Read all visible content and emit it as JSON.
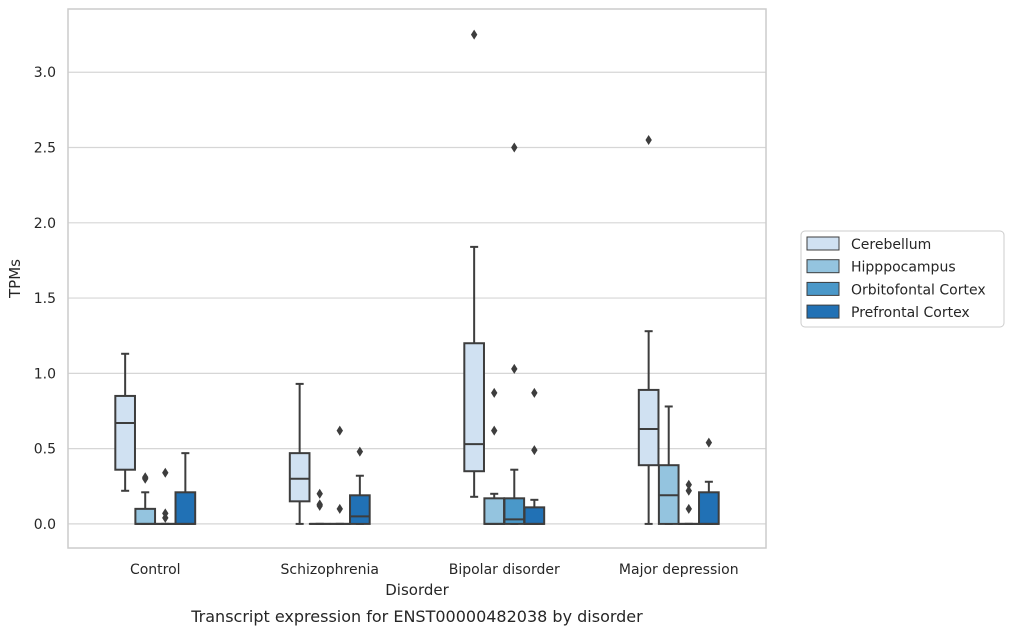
{
  "caption": "Transcript expression for ENST00000482038 by disorder",
  "chart_data": {
    "type": "box",
    "title": "",
    "xlabel": "Disorder",
    "ylabel": "TPMs",
    "ylim": [
      -0.16,
      3.42
    ],
    "yticks": [
      0.0,
      0.5,
      1.0,
      1.5,
      2.0,
      2.5,
      3.0
    ],
    "ytick_labels": [
      "0.0",
      "0.5",
      "1.0",
      "1.5",
      "2.0",
      "2.5",
      "3.0"
    ],
    "grid": "horizontal",
    "legend_position": "center-right outside",
    "categories": [
      "Control",
      "Schizophrenia",
      "Bipolar disorder",
      "Major depression"
    ],
    "series": [
      {
        "name": "Cerebellum",
        "color": "#d0e1f2",
        "boxes": [
          {
            "whislo": 0.22,
            "q1": 0.36,
            "med": 0.67,
            "q3": 0.85,
            "whishi": 1.13,
            "fliers": []
          },
          {
            "whislo": 0.0,
            "q1": 0.15,
            "med": 0.3,
            "q3": 0.47,
            "whishi": 0.93,
            "fliers": []
          },
          {
            "whislo": 0.18,
            "q1": 0.35,
            "med": 0.53,
            "q3": 1.2,
            "whishi": 1.84,
            "fliers": [
              3.25
            ]
          },
          {
            "whislo": 0.0,
            "q1": 0.39,
            "med": 0.63,
            "q3": 0.89,
            "whishi": 1.28,
            "fliers": [
              2.55
            ]
          }
        ]
      },
      {
        "name": "Hipppocampus",
        "color": "#94c4df",
        "boxes": [
          {
            "whislo": 0.0,
            "q1": 0.0,
            "med": 0.0,
            "q3": 0.1,
            "whishi": 0.21,
            "fliers": [
              0.3,
              0.31
            ]
          },
          {
            "whislo": 0.0,
            "q1": 0.0,
            "med": 0.0,
            "q3": 0.0,
            "whishi": 0.0,
            "fliers": [
              0.12,
              0.13,
              0.2
            ]
          },
          {
            "whislo": 0.0,
            "q1": 0.0,
            "med": 0.0,
            "q3": 0.17,
            "whishi": 0.2,
            "fliers": [
              0.62,
              0.87
            ]
          },
          {
            "whislo": 0.0,
            "q1": 0.0,
            "med": 0.19,
            "q3": 0.39,
            "whishi": 0.78,
            "fliers": []
          }
        ]
      },
      {
        "name": "Orbitofontal Cortex",
        "color": "#4a98c9",
        "boxes": [
          {
            "whislo": 0.0,
            "q1": 0.0,
            "med": 0.0,
            "q3": 0.0,
            "whishi": 0.0,
            "fliers": [
              0.04,
              0.07,
              0.34
            ]
          },
          {
            "whislo": 0.0,
            "q1": 0.0,
            "med": 0.0,
            "q3": 0.0,
            "whishi": 0.0,
            "fliers": [
              0.1,
              0.62
            ]
          },
          {
            "whislo": 0.0,
            "q1": 0.0,
            "med": 0.03,
            "q3": 0.17,
            "whishi": 0.36,
            "fliers": [
              1.03,
              2.5
            ]
          },
          {
            "whislo": 0.0,
            "q1": 0.0,
            "med": 0.0,
            "q3": 0.0,
            "whishi": 0.0,
            "fliers": [
              0.1,
              0.22,
              0.26
            ]
          }
        ]
      },
      {
        "name": "Prefrontal Cortex",
        "color": "#2171b5",
        "boxes": [
          {
            "whislo": 0.0,
            "q1": 0.0,
            "med": 0.0,
            "q3": 0.21,
            "whishi": 0.47,
            "fliers": []
          },
          {
            "whislo": 0.0,
            "q1": 0.0,
            "med": 0.05,
            "q3": 0.19,
            "whishi": 0.32,
            "fliers": [
              0.48
            ]
          },
          {
            "whislo": 0.0,
            "q1": 0.0,
            "med": 0.0,
            "q3": 0.11,
            "whishi": 0.16,
            "fliers": [
              0.49,
              0.87
            ]
          },
          {
            "whislo": 0.0,
            "q1": 0.0,
            "med": 0.0,
            "q3": 0.21,
            "whishi": 0.28,
            "fliers": [
              0.54
            ]
          }
        ]
      }
    ]
  }
}
